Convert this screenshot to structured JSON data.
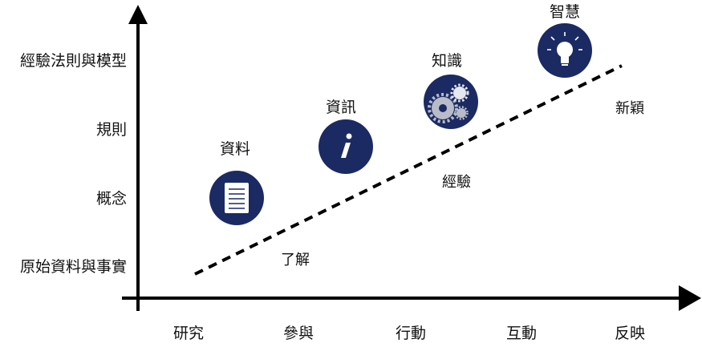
{
  "y_axis_labels": [
    "原始資料與事實",
    "概念",
    "規則",
    "經驗法則與模型"
  ],
  "x_axis_labels": [
    "研究",
    "參與",
    "行動",
    "互動",
    "反映"
  ],
  "stages": [
    {
      "label": "資料",
      "icon": "document-icon"
    },
    {
      "label": "資訊",
      "icon": "info-icon"
    },
    {
      "label": "知識",
      "icon": "gears-icon"
    },
    {
      "label": "智慧",
      "icon": "lightbulb-icon"
    }
  ],
  "trend_labels": [
    "了解",
    "經驗",
    "新穎"
  ],
  "colors": {
    "icon_circle": "#1b2a63",
    "axis": "#000000",
    "text": "#111111"
  }
}
